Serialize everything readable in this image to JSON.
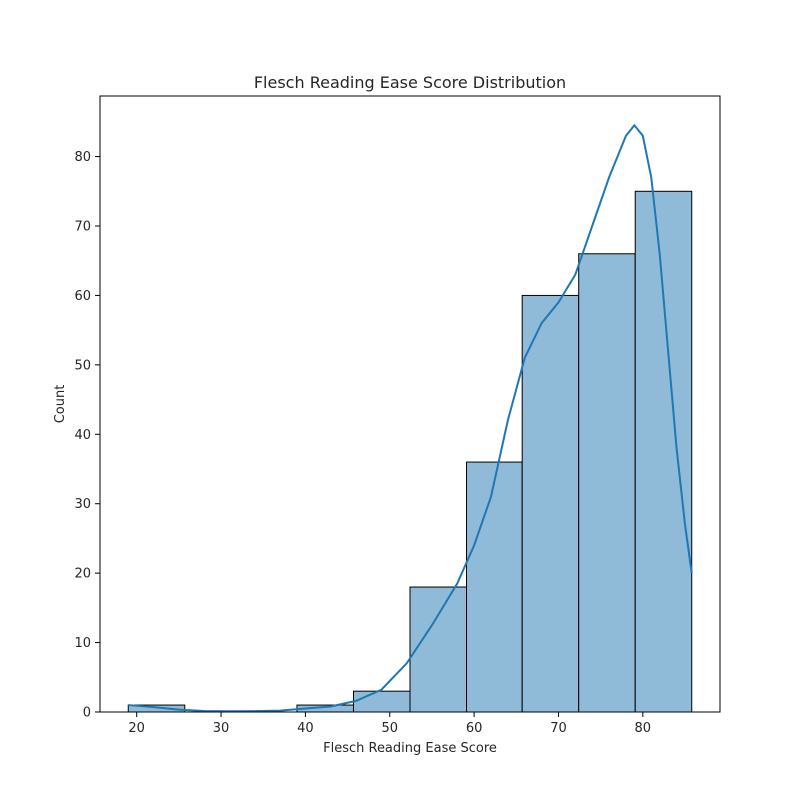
{
  "chart_data": {
    "type": "bar",
    "title": "Flesch Reading Ease Score Distribution",
    "xlabel": "Flesch Reading Ease Score",
    "ylabel": "Count",
    "bins": [
      {
        "start": 19.0,
        "end": 25.7,
        "count": 1
      },
      {
        "start": 25.7,
        "end": 32.4,
        "count": 0
      },
      {
        "start": 32.4,
        "end": 39.0,
        "count": 0
      },
      {
        "start": 39.0,
        "end": 45.7,
        "count": 1
      },
      {
        "start": 45.7,
        "end": 52.4,
        "count": 3
      },
      {
        "start": 52.4,
        "end": 59.1,
        "count": 18
      },
      {
        "start": 59.1,
        "end": 65.7,
        "count": 36
      },
      {
        "start": 65.7,
        "end": 72.4,
        "count": 60
      },
      {
        "start": 72.4,
        "end": 79.1,
        "count": 66
      },
      {
        "start": 79.1,
        "end": 85.8,
        "count": 75
      }
    ],
    "kde": {
      "x": [
        19,
        22,
        25,
        28,
        31,
        34,
        37,
        40,
        43,
        46,
        49,
        52,
        55,
        58,
        60,
        62,
        64,
        66,
        68,
        70,
        72,
        74,
        76,
        78,
        79,
        80,
        81,
        82,
        83,
        84,
        85,
        85.8
      ],
      "y": [
        1.0,
        0.7,
        0.35,
        0.15,
        0.1,
        0.12,
        0.2,
        0.5,
        0.8,
        1.6,
        3.2,
        7.0,
        12.5,
        18.5,
        24,
        31,
        42,
        51,
        56,
        59,
        63,
        70,
        77,
        83,
        84.5,
        83,
        77,
        66,
        52,
        38,
        27,
        20
      ]
    },
    "xticks": [
      20,
      30,
      40,
      50,
      60,
      70,
      80
    ],
    "yticks": [
      0,
      10,
      20,
      30,
      40,
      50,
      60,
      70,
      80
    ],
    "xlim": [
      15.65,
      89.15
    ],
    "ylim": [
      0,
      88.725
    ],
    "bar_color": "#8fbbd9",
    "bar_edge_color": "#000000",
    "line_color": "#1f77b4",
    "grid": false
  }
}
